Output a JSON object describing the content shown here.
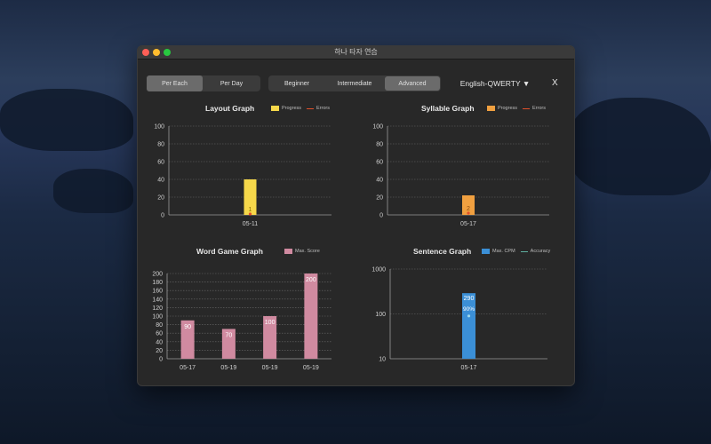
{
  "window": {
    "title": "하나 타자 연습"
  },
  "view_toggle": {
    "per_each": "Per Each",
    "per_day": "Per Day",
    "selected": "per_each"
  },
  "level_toggle": {
    "beginner": "Beginner",
    "intermediate": "Intermediate",
    "advanced": "Advanced",
    "selected": "advanced"
  },
  "language": {
    "label": "English-QWERTY ▼"
  },
  "close_label": "X",
  "colors": {
    "progress_layout": "#f6d84a",
    "progress_syllable": "#f0a040",
    "errors": "#e0502a",
    "word": "#d08aa0",
    "cpm": "#3b8fd6",
    "accuracy": "#5fb0a0"
  },
  "chart_data": [
    {
      "id": "layout",
      "type": "bar",
      "title": "Layout Graph",
      "legend": [
        "Progress",
        "Errors"
      ],
      "categories": [
        "05-11"
      ],
      "series": [
        {
          "name": "Progress",
          "values": [
            40
          ]
        },
        {
          "name": "Errors",
          "values": [
            1
          ]
        }
      ],
      "ylim": [
        0,
        100
      ],
      "yticks": [
        0,
        20,
        40,
        60,
        80,
        100
      ],
      "data_labels": [
        "1"
      ],
      "grid": true
    },
    {
      "id": "syllable",
      "type": "bar",
      "title": "Syllable Graph",
      "legend": [
        "Progress",
        "Errors"
      ],
      "categories": [
        "05-17"
      ],
      "series": [
        {
          "name": "Progress",
          "values": [
            22
          ]
        },
        {
          "name": "Errors",
          "values": [
            2
          ]
        }
      ],
      "ylim": [
        0,
        100
      ],
      "yticks": [
        0,
        20,
        40,
        60,
        80,
        100
      ],
      "data_labels": [
        "2"
      ],
      "grid": true
    },
    {
      "id": "word",
      "type": "bar",
      "title": "Word Game Graph",
      "legend": [
        "Max. Score"
      ],
      "categories": [
        "05-17",
        "05-19",
        "05-19",
        "05-19"
      ],
      "series": [
        {
          "name": "Max. Score",
          "values": [
            90,
            70,
            100,
            200
          ]
        }
      ],
      "ylim": [
        0,
        200
      ],
      "yticks": [
        0,
        20,
        40,
        60,
        80,
        100,
        120,
        140,
        160,
        180,
        200
      ],
      "data_labels": [
        "90",
        "70",
        "100",
        "200"
      ],
      "grid": true
    },
    {
      "id": "sentence",
      "type": "bar",
      "title": "Sentence Graph",
      "legend": [
        "Max. CPM",
        "Accuracy"
      ],
      "categories": [
        "05-17"
      ],
      "series": [
        {
          "name": "Max. CPM",
          "values": [
            290
          ]
        },
        {
          "name": "Accuracy",
          "values": [
            90
          ]
        }
      ],
      "yscale": "log",
      "ylim": [
        10,
        1000
      ],
      "yticks": [
        10,
        100,
        1000
      ],
      "data_labels": [
        "290",
        "90%"
      ],
      "grid": true
    }
  ]
}
